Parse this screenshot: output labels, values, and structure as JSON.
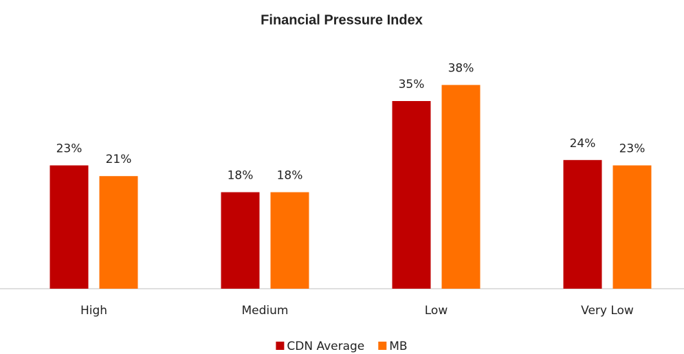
{
  "chart_data": {
    "type": "bar",
    "title": "Financial Pressure Index",
    "categories": [
      "High",
      "Medium",
      "Low",
      "Very Low"
    ],
    "series": [
      {
        "name": "CDN Average",
        "color": "#c00000",
        "values": [
          23,
          18,
          35,
          24
        ],
        "value_labels": [
          "23%",
          "18%",
          "35%",
          "24%"
        ]
      },
      {
        "name": "MB",
        "color": "#ff7000",
        "values": [
          21,
          18,
          38,
          23
        ],
        "value_labels": [
          "21%",
          "18%",
          "38%",
          "23%"
        ]
      }
    ],
    "ylim": [
      0,
      40
    ],
    "legend": "bottom"
  }
}
